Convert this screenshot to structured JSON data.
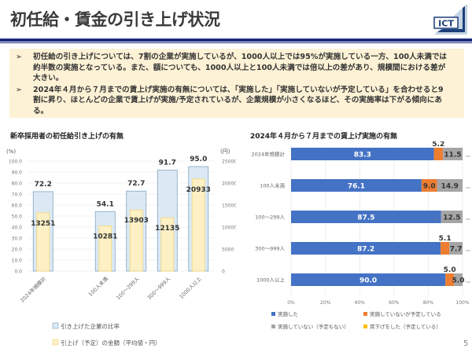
{
  "header": {
    "title": "初任給・賃金の引き上げ状況",
    "logo_text": "ICT"
  },
  "summary": {
    "bullet_icon": "➢",
    "bullets": [
      "初任給の引き上げについては、7割の企業が実施しているが、1000人以上では95%が実施している一方、100人未満では約半数の実施となっている。また、額についても、1000人以上と100人未満では倍以上の差があり、規模間における差が大きい。",
      "2024年４月から７月までの賃上げ実施の有無については、「実施した」「実施していないが予定している」を合わせると9割に昇り、ほとんどの企業で賃上げが実施/予定されているが、企業規模が小さくなるほど、その実施率は下がる傾向にある。"
    ]
  },
  "page_number": "5",
  "colors": {
    "accent": "#1c2a7a",
    "bar_rate": "#dce9f5",
    "bar_rate_border": "#7fa3bf",
    "bar_amount": "#fdf0c4",
    "bar_amount_border": "#f0d77a",
    "done": "#4472c4",
    "planned": "#ed7d31",
    "none": "#a5a5a5",
    "cut": "#ffc000"
  },
  "chart_data": [
    {
      "type": "bar",
      "title": "新卒採用者の初任給引き上げの有無",
      "categories": [
        "2024年規模計",
        "",
        "100人未満",
        "100～299人",
        "300～999人",
        "1000人以上"
      ],
      "ylabel": "(%)",
      "y2label": "(円)",
      "ylim": [
        0,
        100
      ],
      "y2lim": [
        0,
        25000
      ],
      "yticks": [
        "0.0",
        "10.0",
        "20.0",
        "30.0",
        "40.0",
        "50.0",
        "60.0",
        "70.0",
        "80.0",
        "90.0",
        "100.0"
      ],
      "y2ticks": [
        "0",
        "5000",
        "10000",
        "15000",
        "20000",
        "25000"
      ],
      "grid": true,
      "legend_position": "bottom",
      "series": [
        {
          "name": "引き上げた企業の比率",
          "axis": "left",
          "values": [
            72.2,
            null,
            54.1,
            72.7,
            91.7,
            95.0
          ],
          "labels": [
            "72.2",
            "",
            "54.1",
            "72.7",
            "91.7",
            "95.0"
          ]
        },
        {
          "name": "引上げ（予定）の金額（平均値・円）",
          "axis": "right",
          "values": [
            13251,
            null,
            10281,
            13903,
            12135,
            20933
          ],
          "labels": [
            "13251",
            "",
            "10281",
            "13903",
            "12135",
            "20933"
          ]
        }
      ]
    },
    {
      "type": "bar",
      "orientation": "horizontal-stacked-100",
      "title": "2024年４月から７月までの賃上げ実施の有無",
      "categories": [
        "2024年規模計",
        "100人未満",
        "100～299人",
        "300～999人",
        "1000人以上"
      ],
      "xticks": [
        "0%",
        "20%",
        "40%",
        "60%",
        "80%",
        "100%"
      ],
      "xlim": [
        0,
        100
      ],
      "grid": true,
      "legend_position": "bottom",
      "series": [
        {
          "name": "実施した",
          "values": [
            83.3,
            76.1,
            87.5,
            87.2,
            90.0
          ],
          "labels": [
            "83.3",
            "76.1",
            "87.5",
            "87.2",
            "90.0"
          ]
        },
        {
          "name": "実施していないが予定している",
          "values": [
            5.2,
            9.0,
            0.0,
            5.1,
            5.0
          ],
          "labels": [
            "5.2",
            "9.0",
            "…",
            "5.1",
            "5.0"
          ]
        },
        {
          "name": "実施していない（予定もない）",
          "values": [
            11.5,
            14.9,
            12.5,
            7.7,
            5.0
          ],
          "labels": [
            "11.5",
            "14.9",
            "12.5",
            "7.7",
            "5.0"
          ]
        },
        {
          "name": "賃下げをした（予定している）",
          "values": [
            0.0,
            0.0,
            0.0,
            0.0,
            0.0
          ],
          "labels": [
            "…",
            "…",
            "…",
            "…",
            "…"
          ]
        }
      ]
    }
  ]
}
